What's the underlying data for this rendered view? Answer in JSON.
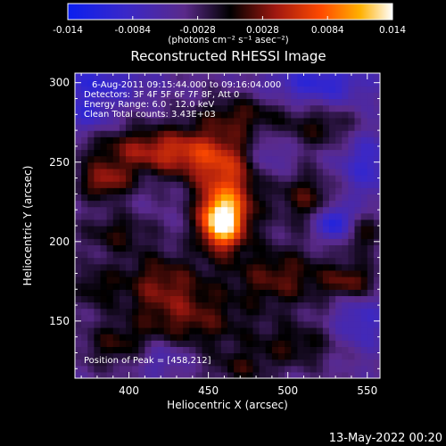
{
  "chart_data": {
    "type": "heatmap",
    "title": "Reconstructed RHESSI Image",
    "xlabel": "Heliocentric X (arcsec)",
    "ylabel": "Heliocentric Y (arcsec)",
    "xlim": [
      366,
      558
    ],
    "ylim": [
      114,
      306
    ],
    "x_ticks": [
      400,
      450,
      500,
      550
    ],
    "y_ticks": [
      150,
      200,
      250,
      300
    ],
    "colorbar": {
      "range": [
        -0.014,
        0.014
      ],
      "ticks": [
        "-0.014",
        "-0.0084",
        "-0.0028",
        "0.0028",
        "0.0084",
        "0.014"
      ],
      "unit_label": "(photons cm⁻² s⁻¹ asec⁻²)"
    },
    "annotations": [
      "6-Aug-2011 09:15:44.000 to 09:16:04.000",
      "Detectors: 3F 4F 5F 6F 7F 8F, Att 0",
      "Energy Range: 6.0 - 12.0 keV",
      "Clean     Total counts: 3.43E+03"
    ],
    "peak_label": "Position of Peak = [458,212]",
    "peak": {
      "x": 458,
      "y": 212,
      "value": 0.014
    },
    "sources": [
      {
        "x": 458,
        "y": 212,
        "sx": 9,
        "sy": 11,
        "amp": 0.014
      },
      {
        "x": 462,
        "y": 228,
        "sx": 14,
        "sy": 20,
        "amp": 0.0095
      },
      {
        "x": 445,
        "y": 255,
        "sx": 22,
        "sy": 12,
        "amp": 0.0065
      },
      {
        "x": 408,
        "y": 258,
        "sx": 26,
        "sy": 10,
        "amp": 0.0065
      },
      {
        "x": 470,
        "y": 280,
        "sx": 20,
        "sy": 9,
        "amp": 0.005
      },
      {
        "x": 385,
        "y": 238,
        "sx": 12,
        "sy": 8,
        "amp": 0.0075
      },
      {
        "x": 392,
        "y": 206,
        "sx": 16,
        "sy": 9,
        "amp": 0.0045
      },
      {
        "x": 420,
        "y": 175,
        "sx": 20,
        "sy": 14,
        "amp": 0.006
      },
      {
        "x": 440,
        "y": 150,
        "sx": 26,
        "sy": 14,
        "amp": 0.0055
      },
      {
        "x": 392,
        "y": 135,
        "sx": 16,
        "sy": 10,
        "amp": 0.0045
      },
      {
        "x": 495,
        "y": 178,
        "sx": 22,
        "sy": 14,
        "amp": 0.006
      },
      {
        "x": 512,
        "y": 228,
        "sx": 14,
        "sy": 12,
        "amp": 0.0055
      },
      {
        "x": 522,
        "y": 272,
        "sx": 18,
        "sy": 10,
        "amp": 0.0045
      },
      {
        "x": 540,
        "y": 175,
        "sx": 12,
        "sy": 8,
        "amp": 0.0065
      },
      {
        "x": 545,
        "y": 205,
        "sx": 10,
        "sy": 9,
        "amp": 0.005
      },
      {
        "x": 505,
        "y": 135,
        "sx": 20,
        "sy": 10,
        "amp": 0.0045
      },
      {
        "x": 470,
        "y": 120,
        "sx": 14,
        "sy": 8,
        "amp": 0.004
      },
      {
        "x": 378,
        "y": 172,
        "sx": 10,
        "sy": 10,
        "amp": 0.004
      },
      {
        "x": 530,
        "y": 212,
        "sx": 8,
        "sy": 8,
        "amp": -0.0095
      },
      {
        "x": 520,
        "y": 300,
        "sx": 22,
        "sy": 10,
        "amp": -0.006
      },
      {
        "x": 380,
        "y": 300,
        "sx": 22,
        "sy": 8,
        "amp": -0.0055
      },
      {
        "x": 550,
        "y": 250,
        "sx": 14,
        "sy": 16,
        "amp": -0.005
      },
      {
        "x": 375,
        "y": 280,
        "sx": 10,
        "sy": 8,
        "amp": -0.005
      },
      {
        "x": 545,
        "y": 150,
        "sx": 12,
        "sy": 14,
        "amp": -0.0045
      },
      {
        "x": 420,
        "y": 128,
        "sx": 12,
        "sy": 8,
        "amp": -0.004
      },
      {
        "x": 488,
        "y": 255,
        "sx": 10,
        "sy": 10,
        "amp": -0.0035
      }
    ]
  },
  "footer_timestamp": "13-May-2022 00:20"
}
